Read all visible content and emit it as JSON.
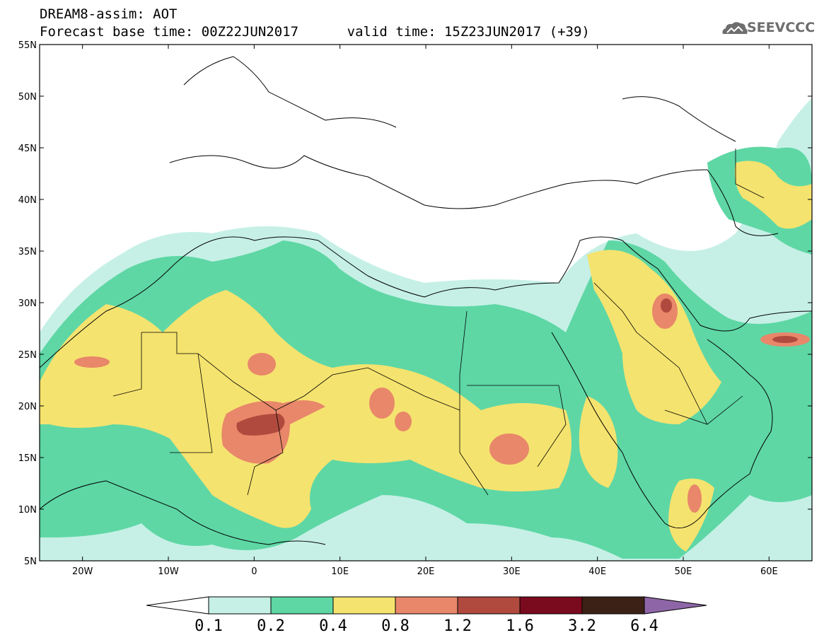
{
  "header": {
    "title": "DREAM8-assim: AOT",
    "subtitle": "Forecast base time: 00Z22JUN2017      valid time: 15Z23JUN2017 (+39)",
    "logo_text": "SEEVCCC"
  },
  "map": {
    "projection": "lat-lon",
    "lon_range": [
      -25,
      65
    ],
    "lat_range": [
      5,
      55
    ],
    "lat_labels": [
      "5N",
      "10N",
      "15N",
      "20N",
      "25N",
      "30N",
      "35N",
      "40N",
      "45N",
      "50N",
      "55N"
    ],
    "lat_values": [
      5,
      10,
      15,
      20,
      25,
      30,
      35,
      40,
      45,
      50,
      55
    ],
    "lon_labels": [
      "20W",
      "10W",
      "0",
      "10E",
      "20E",
      "30E",
      "40E",
      "50E",
      "60E"
    ],
    "lon_values": [
      -20,
      -10,
      0,
      10,
      20,
      30,
      40,
      50,
      60
    ],
    "variable": "AOT"
  },
  "colorbar": {
    "labels": [
      "0.1",
      "0.2",
      "0.4",
      "0.8",
      "1.2",
      "1.6",
      "3.2",
      "6.4"
    ],
    "colors": [
      "#c6f0e6",
      "#5ed7a5",
      "#f5e36f",
      "#e8876a",
      "#b04a3e",
      "#7a0a1e",
      "#3c2216"
    ],
    "under_color": "#ffffff",
    "over_color": "#8e66a8"
  },
  "colors": {
    "light": "#c6f0e6",
    "green": "#5ed7a5",
    "yellow": "#f5e36f",
    "orange": "#e8876a",
    "red": "#b04a3e",
    "darkred": "#7a0a1e",
    "brown": "#3c2216"
  }
}
